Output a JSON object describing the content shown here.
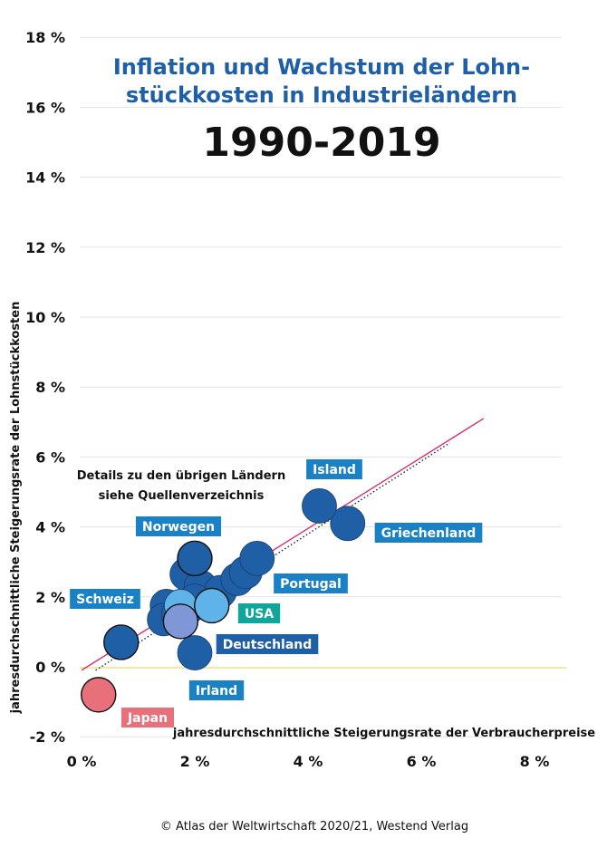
{
  "chart_data": {
    "type": "scatter",
    "title": "Inflation und Wachstum der Lohnstückkosten in Industrieländern",
    "title_lines": [
      "Inflation und Wachstum der Lohn-",
      "stückkosten in Industrieländern"
    ],
    "subtitle": "1990-2019",
    "xlabel": "jahresdurchschnittliche Steigerungsrate der Verbraucherpreise",
    "ylabel": "jahresdurchschnittliche Steigerungsrate der Lohnstückkosten",
    "xlim": [
      0,
      8.5
    ],
    "ylim": [
      -2,
      18
    ],
    "x_ticks": [
      0,
      2,
      4,
      6,
      8
    ],
    "x_tick_labels": [
      "0 %",
      "2 %",
      "4 %",
      "6 %",
      "8 %"
    ],
    "y_ticks": [
      -2,
      0,
      2,
      4,
      6,
      8,
      10,
      12,
      14,
      16,
      18
    ],
    "y_tick_labels": [
      "-2 %",
      "0 %",
      "2 %",
      "4 %",
      "6 %",
      "8 %",
      "10 %",
      "12 %",
      "14 %",
      "16 %",
      "18 %"
    ],
    "grid": true,
    "note_lines": [
      "Details zu den übrigen Ländern",
      "siehe Quellenverzeichnis"
    ],
    "labeled_points": [
      {
        "label": "Island",
        "x": 4.2,
        "y": 4.6,
        "color": "#1f5fa6",
        "label_color": "#1a82c4"
      },
      {
        "label": "Griechenland",
        "x": 4.7,
        "y": 4.1,
        "color": "#1f5fa6",
        "label_color": "#1a82c4"
      },
      {
        "label": "Norwegen",
        "x": 2.0,
        "y": 3.1,
        "color": "#1f5fa6",
        "label_color": "#1a82c4"
      },
      {
        "label": "Portugal",
        "x": 3.1,
        "y": 3.1,
        "color": "#1f5fa6",
        "label_color": "#1a82c4"
      },
      {
        "label": "Schweiz",
        "x": 0.7,
        "y": 0.7,
        "color": "#1f5fa6",
        "label_color": "#1a82c4"
      },
      {
        "label": "USA",
        "x": 2.3,
        "y": 1.75,
        "color": "#5fb3e8",
        "label_color": "#12a59a"
      },
      {
        "label": "Deutschland",
        "x": 2.0,
        "y": 0.4,
        "color": "#1f5fa6",
        "label_color": "#1f5fa6"
      },
      {
        "label": "Irland",
        "x": 1.75,
        "y": 1.3,
        "color": "#7f97d6",
        "label_color": "#1a82c4"
      },
      {
        "label": "Japan",
        "x": 0.3,
        "y": -0.8,
        "color": "#e8707a",
        "label_color": "#e8707a"
      }
    ],
    "other_points": [
      {
        "x": 1.5,
        "y": 1.75
      },
      {
        "x": 1.45,
        "y": 1.35
      },
      {
        "x": 1.9,
        "y": 1.7
      },
      {
        "x": 1.85,
        "y": 2.65
      },
      {
        "x": 2.1,
        "y": 2.3
      },
      {
        "x": 2.45,
        "y": 2.15
      },
      {
        "x": 2.75,
        "y": 2.5
      },
      {
        "x": 2.9,
        "y": 2.7
      },
      {
        "x": 1.7,
        "y": 1.5
      },
      {
        "x": 2.0,
        "y": 1.9
      }
    ],
    "other_point_color": "#1f5fa6",
    "highlight_points": [
      {
        "x": 1.75,
        "y": 1.75,
        "color": "#5fb3e8"
      }
    ],
    "trend_line": {
      "x": [
        0,
        7.1
      ],
      "y": [
        -0.1,
        7.1
      ],
      "color": "#d6246e"
    },
    "dotted_line": {
      "x": [
        0.25,
        6.5
      ],
      "y": [
        -0.1,
        6.4
      ],
      "color": "#222222"
    },
    "zero_line_color": "#f0ec9a"
  },
  "credit": "© Atlas der Weltwirtschaft 2020/21, Westend Verlag"
}
